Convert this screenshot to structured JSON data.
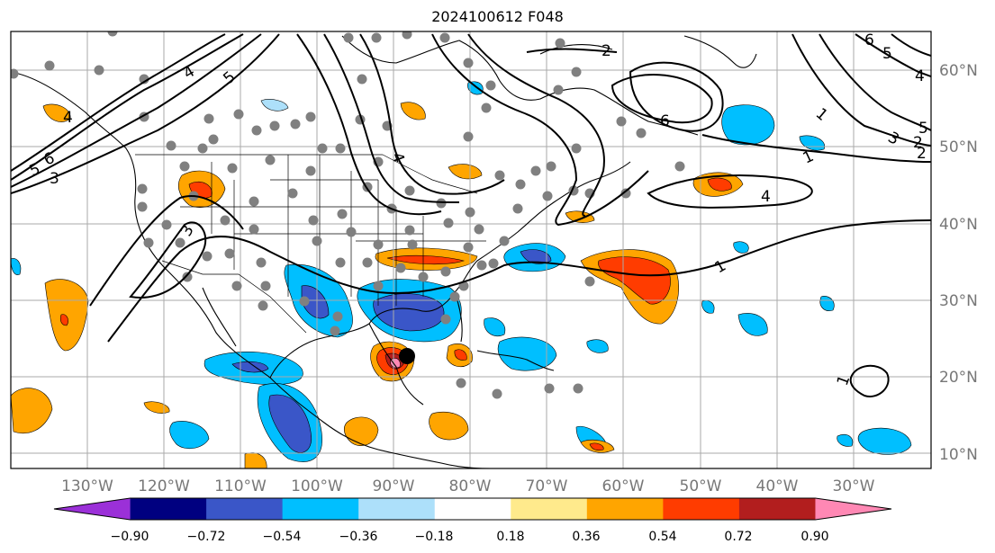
{
  "title": "2024100612 F048",
  "lon_labels": [
    "130°W",
    "120°W",
    "110°W",
    "100°W",
    "90°W",
    "80°W",
    "70°W",
    "60°W",
    "50°W",
    "40°W",
    "30°W"
  ],
  "lat_labels": [
    "60°N",
    "50°N",
    "40°N",
    "30°N",
    "20°N",
    "10°N"
  ],
  "colorbar": {
    "labels": [
      "−0.90",
      "−0.72",
      "−0.54",
      "−0.36",
      "−0.18",
      "0.18",
      "0.36",
      "0.54",
      "0.72",
      "0.90"
    ],
    "colors": [
      "#9b30d8",
      "#000080",
      "#3a56c8",
      "#00bfff",
      "#ade0fa",
      "#ffffff",
      "#ffea8c",
      "#ffa500",
      "#ff3c00",
      "#b21e1e",
      "#ff88b4"
    ]
  },
  "contour_labels": [
    "2",
    "4",
    "5",
    "6",
    "6",
    "5",
    "4",
    "5",
    "2",
    "4",
    "3",
    "2",
    "1",
    "3",
    "4",
    "5",
    "6",
    "3",
    "1",
    "4",
    "1",
    "1"
  ]
}
